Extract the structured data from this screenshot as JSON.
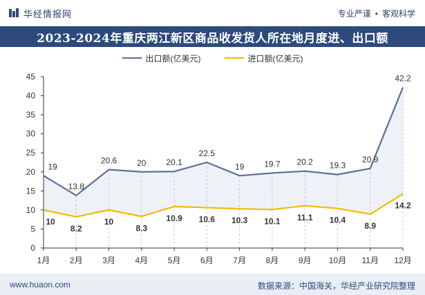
{
  "header": {
    "brand": "华经情报网",
    "slogan_left": "专业严谨",
    "slogan_right": "客观科学"
  },
  "footer": {
    "site": "www.huaon.com",
    "source": "数据来源：中国海关，华经产业研究院整理"
  },
  "colors": {
    "export": "#5b6f9b",
    "import": "#f5b800",
    "title_bg": "#2d4a7c",
    "area_fill": "#eef1f6"
  },
  "chart_data": {
    "type": "line",
    "title": "2023-2024年重庆两江新区商品收发货人所在地月度进、出口额",
    "categories": [
      "1月",
      "2月",
      "3月",
      "4月",
      "5月",
      "6月",
      "7月",
      "8月",
      "9月",
      "10月",
      "11月",
      "12月"
    ],
    "series": [
      {
        "name": "出口额(亿美元)",
        "values": [
          19,
          13.8,
          20.6,
          20,
          20.1,
          22.5,
          19,
          19.7,
          20.2,
          19.3,
          20.9,
          42.2
        ]
      },
      {
        "name": "进口额(亿美元)",
        "values": [
          10,
          8.2,
          10,
          8.3,
          10.9,
          10.6,
          10.3,
          10.1,
          11.1,
          10.4,
          8.9,
          14.2
        ]
      }
    ],
    "ylim": [
      0,
      45
    ],
    "yticks": [
      "0",
      "5",
      "10",
      "15",
      "20",
      "25",
      "30",
      "35",
      "40",
      "45"
    ],
    "grid": false,
    "legend_position": "top"
  }
}
